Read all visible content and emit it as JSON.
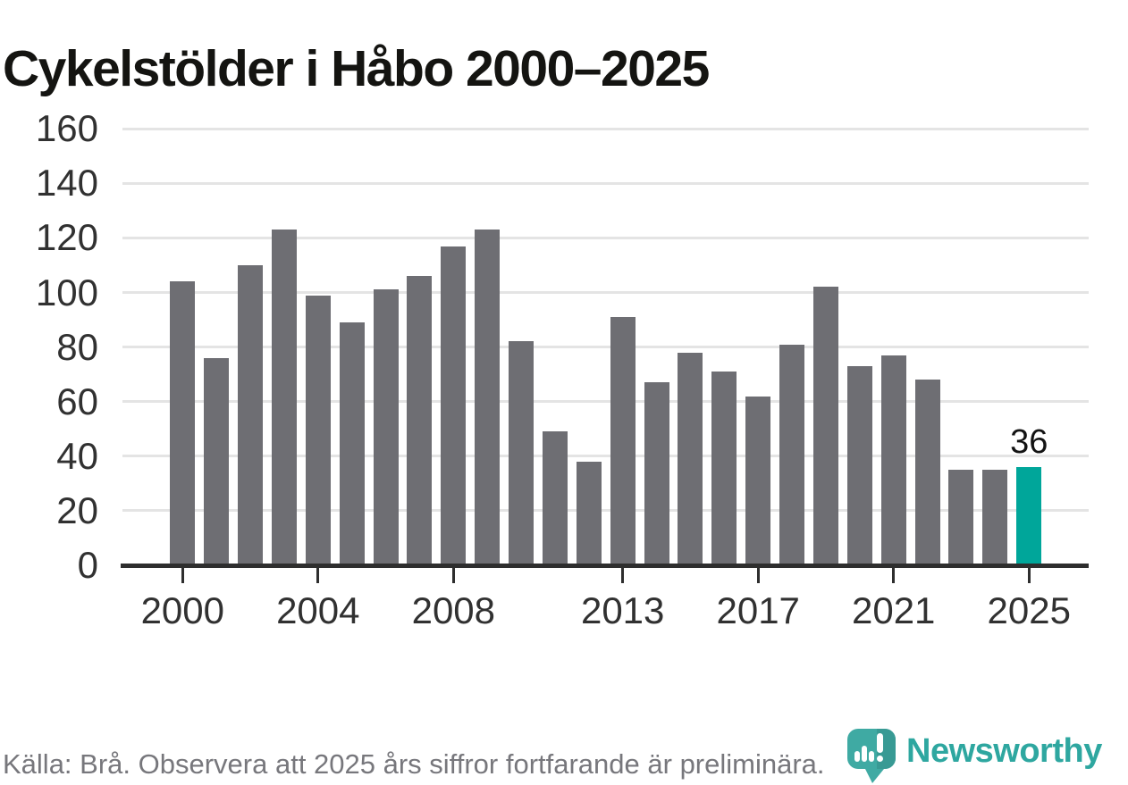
{
  "title": "Cykelstölder i Håbo 2000–2025",
  "chart_data": {
    "type": "bar",
    "title": "Cykelstölder i Håbo 2000–2025",
    "x": [
      2000,
      2001,
      2002,
      2003,
      2004,
      2005,
      2006,
      2007,
      2008,
      2009,
      2010,
      2011,
      2012,
      2013,
      2014,
      2015,
      2016,
      2017,
      2018,
      2019,
      2020,
      2021,
      2022,
      2023,
      2024,
      2025
    ],
    "values": [
      104,
      76,
      110,
      123,
      99,
      89,
      101,
      106,
      117,
      123,
      82,
      49,
      38,
      91,
      67,
      78,
      71,
      62,
      81,
      102,
      73,
      77,
      68,
      35,
      35,
      36
    ],
    "highlight_year": 2025,
    "highlight_label": "36",
    "y_ticks": [
      0,
      20,
      40,
      60,
      80,
      100,
      120,
      140,
      160
    ],
    "ylim": [
      0,
      160
    ],
    "x_tick_years": [
      2000,
      2004,
      2008,
      2013,
      2017,
      2021,
      2025
    ],
    "grid": true,
    "legend_position": "none",
    "bar_color": "#6e6e73",
    "highlight_color": "#00a69a",
    "axis_color": "#2e2e2e",
    "grid_color": "#e4e4e4"
  },
  "footer": {
    "source_note": "Källa: Brå. Observera att 2025 års siffror fortfarande är preliminära."
  },
  "branding": {
    "logo_text": "Newsworthy",
    "logo_icon": "newsworthy-pin-barchart-icon",
    "brand_teal": "#2ea7a0"
  }
}
